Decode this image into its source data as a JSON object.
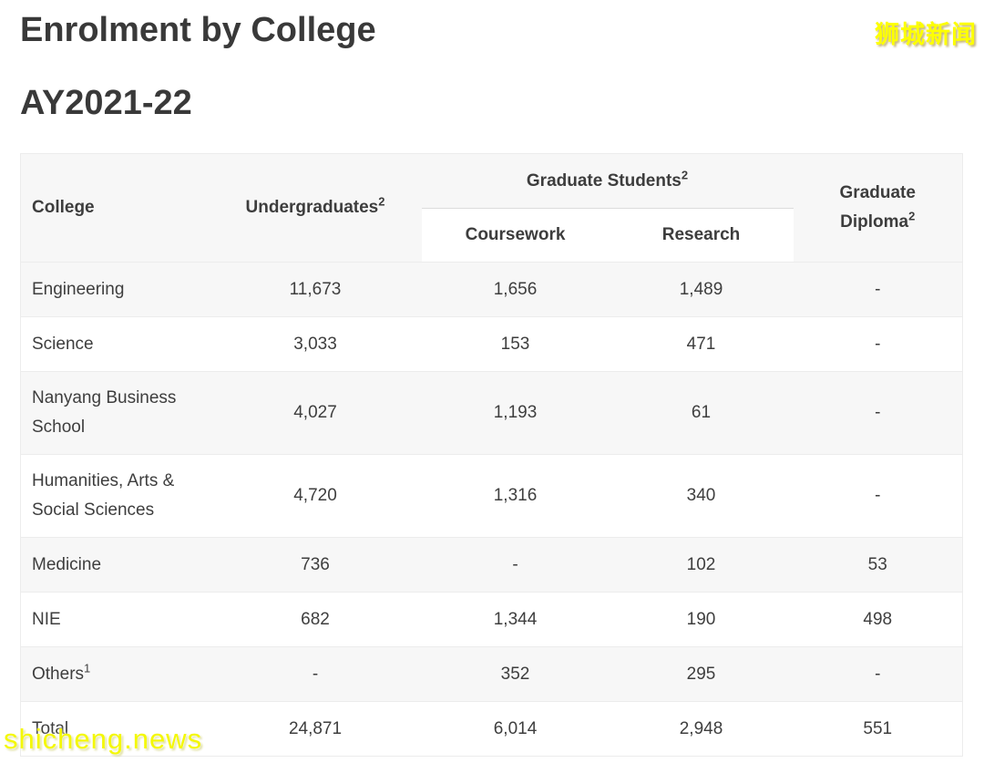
{
  "page": {
    "title_line1": "Enrolment by College",
    "title_line2": "AY2021-22"
  },
  "watermarks": {
    "top_right": "狮城新闻",
    "bottom_left": "shicheng.news"
  },
  "colors": {
    "header_bg": "#f7f7f7",
    "stripe_bg": "#f7f7f7",
    "row_border": "#ececec",
    "text": "#3d3d3d",
    "title_text": "#393939",
    "watermark_yellow": "#fdff00"
  },
  "table": {
    "header": {
      "college": "College",
      "undergraduates": {
        "label": "Undergraduates",
        "sup": "2"
      },
      "graduate_students": {
        "label": "Graduate Students",
        "sup": "2"
      },
      "coursework": "Coursework",
      "research": "Research",
      "graduate_diploma": {
        "label": "Graduate Diploma",
        "sup": "2"
      }
    },
    "rows": [
      {
        "college": "Engineering",
        "sup": "",
        "values": [
          "11,673",
          "1,656",
          "1,489",
          "-"
        ]
      },
      {
        "college": "Science",
        "sup": "",
        "values": [
          "3,033",
          "153",
          "471",
          "-"
        ]
      },
      {
        "college": "Nanyang Business School",
        "sup": "",
        "values": [
          "4,027",
          "1,193",
          "61",
          "-"
        ]
      },
      {
        "college": "Humanities, Arts & Social Sciences",
        "sup": "",
        "values": [
          "4,720",
          "1,316",
          "340",
          "-"
        ]
      },
      {
        "college": "Medicine",
        "sup": "",
        "values": [
          "736",
          "-",
          "102",
          "53"
        ]
      },
      {
        "college": "NIE",
        "sup": "",
        "values": [
          "682",
          "1,344",
          "190",
          "498"
        ]
      },
      {
        "college": "Others",
        "sup": "1",
        "values": [
          "-",
          "352",
          "295",
          "-"
        ]
      },
      {
        "college": "Total",
        "sup": "",
        "values": [
          "24,871",
          "6,014",
          "2,948",
          "551"
        ]
      }
    ]
  }
}
